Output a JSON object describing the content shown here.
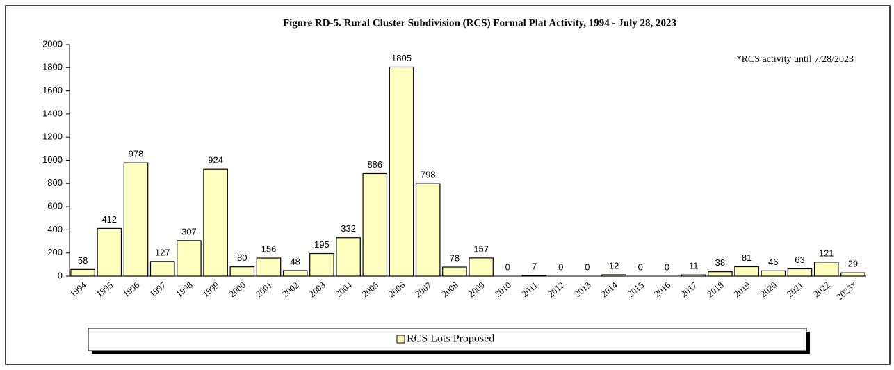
{
  "chart_data": {
    "type": "bar",
    "title": "Figure RD-5. Rural Cluster Subdivision  (RCS) Formal  Plat Activity,  1994 - July 28, 2023",
    "annotation": "*RCS activity until 7/28/2023",
    "categories": [
      "1994",
      "1995",
      "1996",
      "1997",
      "1998",
      "1999",
      "2000",
      "2001",
      "2002",
      "2003",
      "2004",
      "2005",
      "2006",
      "2007",
      "2008",
      "2009",
      "2010",
      "2011",
      "2012",
      "2013",
      "2014",
      "2015",
      "2016",
      "2017",
      "2018",
      "2019",
      "2020",
      "2021",
      "2022",
      "2023*"
    ],
    "series": [
      {
        "name": "RCS Lots Proposed",
        "color": "#ffffc0",
        "values": [
          58,
          412,
          978,
          127,
          307,
          924,
          80,
          156,
          48,
          195,
          332,
          886,
          1805,
          798,
          78,
          157,
          0,
          7,
          0,
          0,
          12,
          0,
          0,
          11,
          38,
          81,
          46,
          63,
          121,
          29
        ]
      }
    ],
    "ylim": [
      0,
      2000
    ],
    "yticks": [
      0,
      200,
      400,
      600,
      800,
      1000,
      1200,
      1400,
      1600,
      1800,
      2000
    ],
    "grid": false,
    "legend": "bottom"
  }
}
